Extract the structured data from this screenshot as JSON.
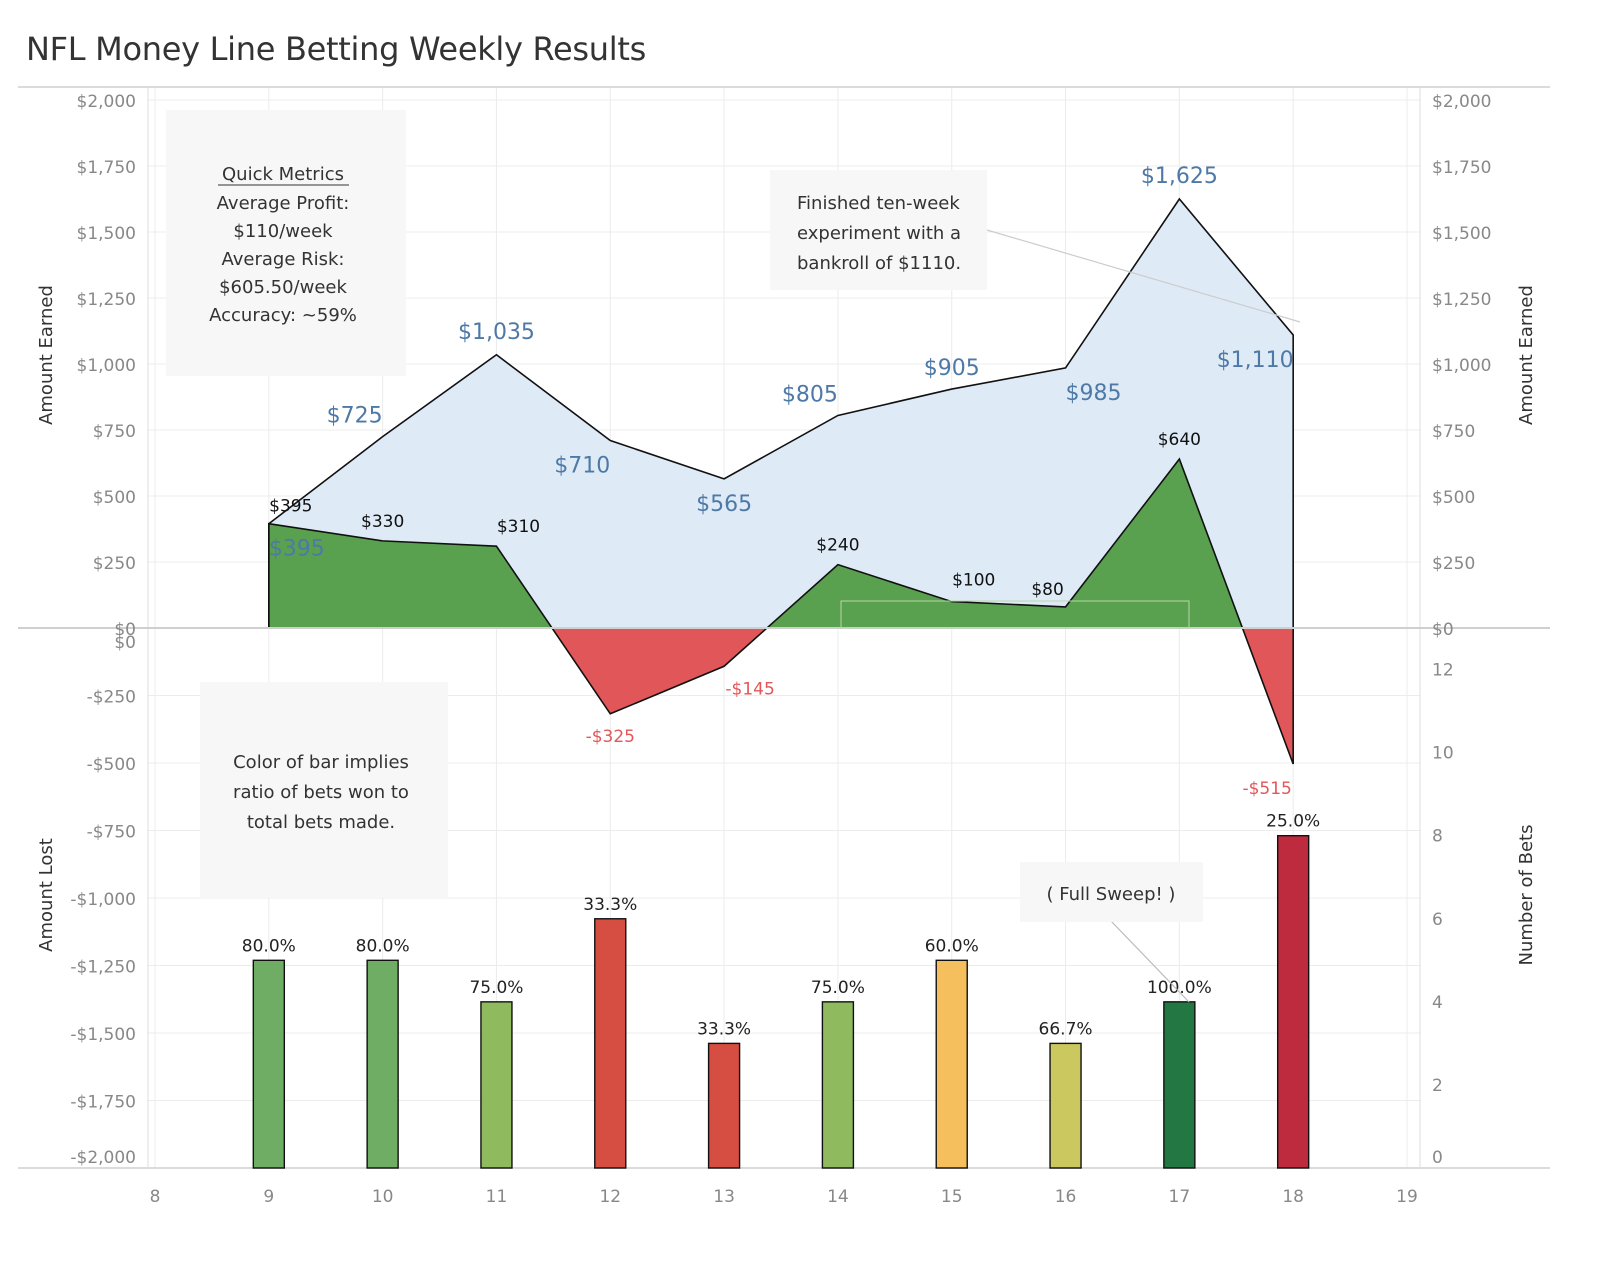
{
  "title": "NFL Money Line Betting Weekly Results",
  "chart_data": {
    "type": "area",
    "x": [
      9,
      10,
      11,
      12,
      13,
      14,
      15,
      16,
      17,
      18
    ],
    "x_ticks": [
      "8",
      "9",
      "10",
      "11",
      "12",
      "13",
      "14",
      "15",
      "16",
      "17",
      "18",
      "19"
    ],
    "xlim": [
      8,
      19
    ],
    "series": [
      {
        "role": "cumulative",
        "values": [
          395,
          725,
          1035,
          710,
          565,
          805,
          905,
          985,
          1625,
          1110
        ],
        "labels": [
          "$395",
          "$725",
          "$1,035",
          "$710",
          "$565",
          "$805",
          "$905",
          "$985",
          "$1,625",
          "$1,110"
        ],
        "color": "#deebf7"
      },
      {
        "role": "weekly",
        "values": [
          395,
          330,
          310,
          -325,
          -145,
          240,
          100,
          80,
          640,
          -515
        ],
        "labels": [
          "$395",
          "$330",
          "$310",
          "-$325",
          "-$145",
          "$240",
          "$100",
          "$80",
          "$640",
          "-$515"
        ],
        "pos_color": "#59a14f",
        "neg_color": "#e15759"
      },
      {
        "role": "bets",
        "values": [
          5,
          5,
          4,
          6,
          3,
          4,
          5,
          3,
          4,
          8
        ],
        "labels": [
          "80.0%",
          "80.0%",
          "75.0%",
          "33.3%",
          "33.3%",
          "75.0%",
          "60.0%",
          "66.7%",
          "100.0%",
          "25.0%"
        ],
        "colors": [
          "#6ead63",
          "#6ead63",
          "#8fba5e",
          "#d64d42",
          "#d64d42",
          "#8fba5e",
          "#f6bf5e",
          "#cac85f",
          "#237742",
          "#be2a3e"
        ]
      }
    ],
    "top_axis": {
      "ylabel": "Amount Earned",
      "ylim": [
        0,
        2000
      ],
      "ticks": [
        "$0",
        "$250",
        "$500",
        "$750",
        "$1,000",
        "$1,250",
        "$1,500",
        "$1,750",
        "$2,000"
      ]
    },
    "bottom_axis": {
      "ylabel": "Amount Lost",
      "ylim": [
        -2000,
        0
      ],
      "ticks": [
        "$0",
        "-$250",
        "-$500",
        "-$750",
        "-$1,000",
        "-$1,250",
        "-$1,500",
        "-$1,750",
        "-$2,000"
      ]
    },
    "bets_axis": {
      "ylabel": "Number of Bets",
      "ylim": [
        0,
        13
      ],
      "ticks": [
        "0",
        "2",
        "4",
        "6",
        "8",
        "10",
        "12"
      ]
    },
    "grid": true
  },
  "annotations": {
    "metrics": {
      "heading": "Quick Metrics",
      "lines": [
        "Average Profit:",
        "$110/week",
        "Average Risk:",
        "$605.50/week",
        "Accuracy: ~59%"
      ]
    },
    "experiment": {
      "lines": [
        "Finished ten-week",
        "experiment with a",
        "bankroll of $1110."
      ]
    },
    "color_note": {
      "lines": [
        "Color of bar implies",
        "ratio of bets won to",
        "total bets made."
      ]
    },
    "sweep": {
      "text": "( Full Sweep! )"
    }
  }
}
